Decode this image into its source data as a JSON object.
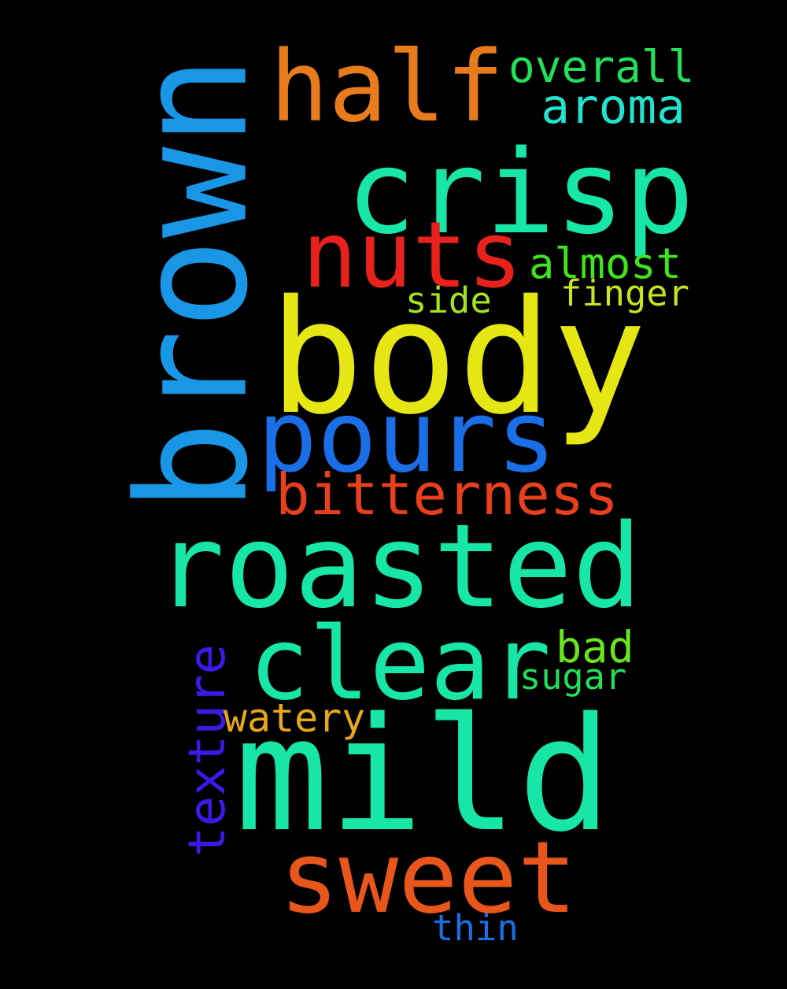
{
  "background_color": "#000000",
  "words": [
    {
      "id": "brown",
      "text": "brown",
      "color": "#1a96e6",
      "orientation": "vertical"
    },
    {
      "id": "half",
      "text": "half",
      "color": "#e87b1c",
      "orientation": "horizontal"
    },
    {
      "id": "overall",
      "text": "overall",
      "color": "#22e05a",
      "orientation": "horizontal"
    },
    {
      "id": "aroma",
      "text": "aroma",
      "color": "#22e3d0",
      "orientation": "horizontal"
    },
    {
      "id": "crisp",
      "text": "crisp",
      "color": "#18e6a6",
      "orientation": "horizontal"
    },
    {
      "id": "nuts",
      "text": "nuts",
      "color": "#e8211c",
      "orientation": "horizontal"
    },
    {
      "id": "almost",
      "text": "almost",
      "color": "#3ee41c",
      "orientation": "horizontal"
    },
    {
      "id": "finger",
      "text": "finger",
      "color": "#c8e41c",
      "orientation": "horizontal"
    },
    {
      "id": "side",
      "text": "side",
      "color": "#a4e41c",
      "orientation": "horizontal"
    },
    {
      "id": "body",
      "text": "body",
      "color": "#e6e614",
      "orientation": "horizontal"
    },
    {
      "id": "pours",
      "text": "pours",
      "color": "#1a6ee6",
      "orientation": "horizontal"
    },
    {
      "id": "bitterness",
      "text": "bitterness",
      "color": "#e8401c",
      "orientation": "horizontal"
    },
    {
      "id": "roasted",
      "text": "roasted",
      "color": "#18e6a6",
      "orientation": "horizontal"
    },
    {
      "id": "clear",
      "text": "clear",
      "color": "#18e6a6",
      "orientation": "horizontal"
    },
    {
      "id": "bad",
      "text": "bad",
      "color": "#6ae41c",
      "orientation": "horizontal"
    },
    {
      "id": "sugar",
      "text": "sugar",
      "color": "#22e05a",
      "orientation": "horizontal"
    },
    {
      "id": "texture",
      "text": "texture",
      "color": "#3a1ae6",
      "orientation": "vertical"
    },
    {
      "id": "watery",
      "text": "watery",
      "color": "#e8a81c",
      "orientation": "horizontal"
    },
    {
      "id": "mild",
      "text": "mild",
      "color": "#18e6a6",
      "orientation": "horizontal"
    },
    {
      "id": "sweet",
      "text": "sweet",
      "color": "#e8561c",
      "orientation": "horizontal"
    },
    {
      "id": "thin",
      "text": "thin",
      "color": "#1a6ee6",
      "orientation": "horizontal"
    }
  ]
}
